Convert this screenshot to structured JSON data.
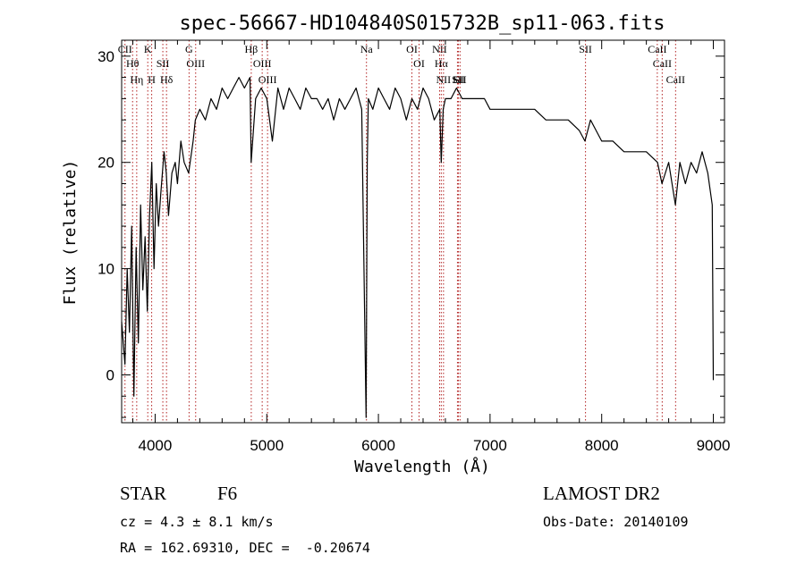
{
  "chart_data": {
    "type": "line",
    "title": "spec-56667-HD104840S015732B_sp11-063.fits",
    "xlabel": "Wavelength (Å)",
    "ylabel": "Flux (relative)",
    "xlim": [
      3700,
      9100
    ],
    "ylim": [
      -4.5,
      31.5
    ],
    "xticks": [
      4000,
      5000,
      6000,
      7000,
      8000,
      9000
    ],
    "yticks": [
      0,
      10,
      20,
      30
    ],
    "series": [
      {
        "x": [
          3700,
          3730,
          3750,
          3770,
          3790,
          3810,
          3830,
          3850,
          3870,
          3890,
          3910,
          3930,
          3950,
          3970,
          3990,
          4010,
          4030,
          4050,
          4080,
          4100,
          4120,
          4150,
          4180,
          4200,
          4230,
          4260,
          4300,
          4340,
          4360,
          4400,
          4450,
          4500,
          4550,
          4600,
          4650,
          4700,
          4750,
          4800,
          4850,
          4860,
          4900,
          4950,
          5000,
          5050,
          5100,
          5150,
          5200,
          5250,
          5300,
          5350,
          5400,
          5450,
          5500,
          5550,
          5600,
          5650,
          5700,
          5750,
          5800,
          5850,
          5890,
          5900,
          5910,
          5950,
          6000,
          6050,
          6100,
          6150,
          6200,
          6250,
          6300,
          6350,
          6400,
          6450,
          6500,
          6550,
          6563,
          6580,
          6600,
          6650,
          6700,
          6750,
          6800,
          6850,
          6900,
          6950,
          7000,
          7100,
          7200,
          7300,
          7400,
          7500,
          7600,
          7700,
          7800,
          7850,
          7900,
          7950,
          8000,
          8100,
          8200,
          8300,
          8400,
          8500,
          8540,
          8600,
          8660,
          8700,
          8750,
          8800,
          8850,
          8900,
          8950,
          8990,
          9000
        ],
        "y": [
          5,
          1,
          10,
          4,
          14,
          -2,
          12,
          3,
          16,
          8,
          13,
          6,
          15,
          20,
          10,
          18,
          14,
          17,
          21,
          19,
          15,
          19,
          20,
          18,
          22,
          20,
          19,
          22,
          24,
          25,
          24,
          26,
          25,
          27,
          26,
          27,
          28,
          27,
          28,
          20,
          26,
          27,
          26,
          22,
          27,
          25,
          27,
          26,
          25,
          27,
          26,
          26,
          25,
          26,
          24,
          26,
          25,
          26,
          27,
          25,
          -4,
          20,
          26,
          25,
          27,
          26,
          25,
          27,
          26,
          24,
          26,
          25,
          27,
          26,
          24,
          25,
          20,
          25,
          26,
          26,
          27,
          26,
          26,
          26,
          26,
          26,
          25,
          25,
          25,
          25,
          25,
          24,
          24,
          24,
          23,
          22,
          24,
          23,
          22,
          22,
          21,
          21,
          21,
          20,
          18,
          20,
          16,
          20,
          18,
          20,
          19,
          21,
          19,
          16,
          -0.5
        ]
      }
    ],
    "spectral_lines": [
      {
        "label": "CII",
        "x": 3730
      },
      {
        "label": "Hθ",
        "x": 3798
      },
      {
        "label": "Hη",
        "x": 3835
      },
      {
        "label": "K",
        "x": 3934
      },
      {
        "label": "H",
        "x": 3969
      },
      {
        "label": "SII",
        "x": 4069
      },
      {
        "label": "Hδ",
        "x": 4102
      },
      {
        "label": "G",
        "x": 4304
      },
      {
        "label": "OIII",
        "x": 4363
      },
      {
        "label": "Hβ",
        "x": 4861
      },
      {
        "label": "OIII",
        "x": 4959
      },
      {
        "label": "OIII",
        "x": 5007
      },
      {
        "label": "Na",
        "x": 5893
      },
      {
        "label": "OI",
        "x": 6300
      },
      {
        "label": "OI",
        "x": 6364
      },
      {
        "label": "NII",
        "x": 6548
      },
      {
        "label": "Hα",
        "x": 6563
      },
      {
        "label": "NII",
        "x": 6583
      },
      {
        "label": "Li",
        "x": 6708
      },
      {
        "label": "SII",
        "x": 6716
      },
      {
        "label": "SII",
        "x": 6731
      },
      {
        "label": "SII",
        "x": 7855
      },
      {
        "label": "CaII",
        "x": 8498
      },
      {
        "label": "CaII",
        "x": 8542
      },
      {
        "label": "CaII",
        "x": 8662
      }
    ]
  },
  "info": {
    "object_type": "STAR",
    "subclass": "F6",
    "cz": "cz = 4.3 ± 8.1 km/s",
    "coords": "RA = 162.69310, DEC =  -0.20674",
    "survey": "LAMOST DR2",
    "obs_date": "Obs-Date: 20140109"
  },
  "colors": {
    "line_marker": "#b22222",
    "spectrum": "#000000"
  }
}
